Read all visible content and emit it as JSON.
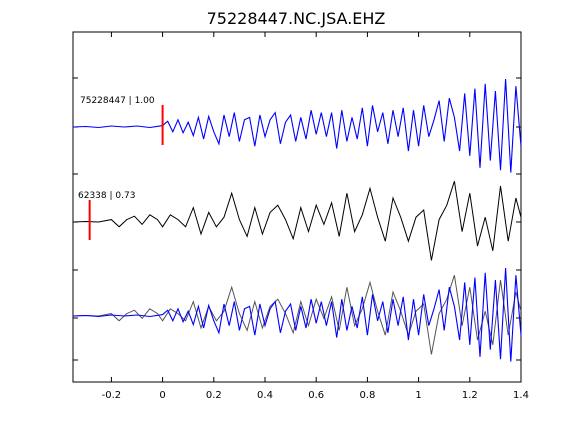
{
  "chart_data": {
    "type": "line",
    "title": "75228447.NC.JSA.EHZ",
    "xlim": [
      -0.35,
      1.4
    ],
    "x_ticks": [
      -0.2,
      0,
      0.2,
      0.4,
      0.6,
      0.8,
      1,
      1.2,
      1.4
    ],
    "x_tick_labels": [
      "-0.2",
      "0",
      "0.2",
      "0.4",
      "0.6",
      "0.8",
      "1",
      "1.2",
      "1.4"
    ],
    "grid": false,
    "traces": [
      {
        "label": "75228447 | 1.00",
        "color": "#0000ff",
        "pick_time": 0.0,
        "pick_color": "#ff0000"
      },
      {
        "label": "62338 | 0.73",
        "color": "#000000",
        "pick_time": -0.285,
        "pick_color": "#ff0000"
      },
      {
        "label": "",
        "overlay": true,
        "colors": [
          "#0000ff",
          "#555555"
        ]
      }
    ],
    "series": [
      {
        "trace": 1,
        "x": [
          -0.35,
          -0.3,
          -0.25,
          -0.2,
          -0.15,
          -0.1,
          -0.05,
          0,
          0.02,
          0.04,
          0.06,
          0.08,
          0.1,
          0.12,
          0.14,
          0.16,
          0.18,
          0.2,
          0.22,
          0.24,
          0.26,
          0.28,
          0.3,
          0.32,
          0.34,
          0.36,
          0.38,
          0.4,
          0.42,
          0.44,
          0.46,
          0.48,
          0.5,
          0.52,
          0.54,
          0.56,
          0.58,
          0.6,
          0.62,
          0.64,
          0.66,
          0.68,
          0.7,
          0.72,
          0.74,
          0.76,
          0.78,
          0.8,
          0.82,
          0.84,
          0.86,
          0.88,
          0.9,
          0.92,
          0.94,
          0.96,
          0.98,
          1,
          1.02,
          1.04,
          1.06,
          1.08,
          1.1,
          1.12,
          1.14,
          1.16,
          1.18,
          1.2,
          1.22,
          1.24,
          1.26,
          1.28,
          1.3,
          1.32,
          1.34,
          1.36,
          1.38,
          1.4
        ],
        "y": [
          0,
          0.01,
          -0.01,
          0.02,
          0,
          0.02,
          -0.01,
          0.03,
          0.12,
          -0.1,
          0.15,
          -0.12,
          0.1,
          -0.18,
          0.2,
          -0.25,
          0.22,
          -0.1,
          -0.35,
          0.25,
          -0.2,
          0.3,
          -0.3,
          0.15,
          0.2,
          -0.4,
          0.25,
          -0.2,
          0.15,
          0.3,
          -0.35,
          0.1,
          0.25,
          -0.3,
          0.2,
          -0.25,
          0.35,
          -0.15,
          0.3,
          -0.2,
          0.3,
          -0.45,
          0.35,
          -0.3,
          0.2,
          -0.25,
          0.4,
          -0.4,
          0.45,
          -0.1,
          0.3,
          -0.35,
          0.35,
          -0.2,
          0.4,
          -0.5,
          0.35,
          -0.4,
          0.45,
          -0.2,
          0.15,
          0.55,
          -0.3,
          0.6,
          0.2,
          -0.5,
          0.7,
          -0.6,
          0.8,
          -0.85,
          0.9,
          -0.7,
          0.75,
          -0.9,
          1.0,
          -0.95,
          0.85,
          -0.4
        ]
      },
      {
        "trace": 2,
        "x": [
          -0.35,
          -0.3,
          -0.25,
          -0.2,
          -0.17,
          -0.14,
          -0.11,
          -0.08,
          -0.05,
          -0.02,
          0,
          0.03,
          0.06,
          0.09,
          0.12,
          0.15,
          0.18,
          0.21,
          0.24,
          0.27,
          0.3,
          0.33,
          0.36,
          0.39,
          0.42,
          0.45,
          0.48,
          0.51,
          0.54,
          0.57,
          0.6,
          0.63,
          0.66,
          0.69,
          0.72,
          0.75,
          0.78,
          0.81,
          0.84,
          0.87,
          0.9,
          0.93,
          0.96,
          0.99,
          1.02,
          1.05,
          1.08,
          1.11,
          1.14,
          1.17,
          1.2,
          1.23,
          1.26,
          1.29,
          1.32,
          1.35,
          1.38,
          1.4
        ],
        "y": [
          0,
          0.01,
          0,
          0.05,
          -0.1,
          0.05,
          0.12,
          -0.05,
          0.15,
          0.05,
          -0.1,
          0.15,
          0.05,
          -0.1,
          0.3,
          -0.25,
          0.2,
          -0.1,
          0.1,
          0.6,
          0.05,
          -0.3,
          0.3,
          -0.25,
          0.2,
          0.35,
          0.05,
          -0.35,
          0.3,
          -0.2,
          0.35,
          -0.05,
          0.4,
          -0.3,
          0.6,
          -0.2,
          0.15,
          0.7,
          0.1,
          -0.4,
          0.5,
          0.1,
          -0.4,
          0.1,
          0.25,
          -0.8,
          0.05,
          0.35,
          0.85,
          -0.2,
          0.6,
          -0.5,
          0.1,
          -0.6,
          0.75,
          -0.4,
          0.5,
          0.1
        ]
      },
      {
        "trace": 3,
        "overlay_of": [
          1,
          2
        ]
      }
    ]
  }
}
